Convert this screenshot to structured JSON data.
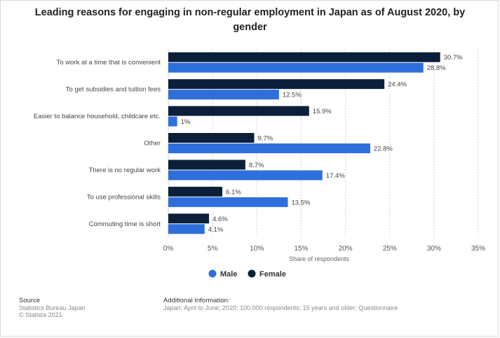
{
  "title": "Leading reasons for engaging in non-regular employment in Japan as of August 2020, by gender",
  "chart_data": {
    "type": "bar",
    "orientation": "horizontal",
    "categories": [
      "To work at a time that is convenient",
      "To get subsidies and tuition fees",
      "Easier to balance household, childcare etc.",
      "Other",
      "There is no regular work",
      "To use professional skills",
      "Commuting time is short"
    ],
    "series": [
      {
        "name": "Female",
        "color": "#0b1f3a",
        "values": [
          30.7,
          24.4,
          15.9,
          9.7,
          8.7,
          6.1,
          4.6
        ],
        "labels": [
          "30.7%",
          "24.4%",
          "15.9%",
          "9.7%",
          "8.7%",
          "6.1%",
          "4.6%"
        ]
      },
      {
        "name": "Male",
        "color": "#2e6fdb",
        "values": [
          28.8,
          12.5,
          1,
          22.8,
          17.4,
          13.5,
          4.1
        ],
        "labels": [
          "28.8%",
          "12.5%",
          "1%",
          "22.8%",
          "17.4%",
          "13.5%",
          "4.1%"
        ]
      }
    ],
    "xlabel": "Share of respondents",
    "xlim": [
      0,
      35
    ],
    "xticks": [
      0,
      5,
      10,
      15,
      20,
      25,
      30,
      35
    ],
    "xtick_labels": [
      "0%",
      "5%",
      "10%",
      "15%",
      "20%",
      "25%",
      "30%",
      "35%"
    ],
    "grid": true,
    "legend": {
      "placement": "bottom",
      "entries": [
        "Male",
        "Female"
      ]
    }
  },
  "footer": {
    "source_heading": "Source",
    "source_lines": [
      "Statistics Bureau Japan",
      "© Statista 2021"
    ],
    "info_heading": "Additional Information:",
    "info_text": "Japan; April to June, 2020; 100,000 respondents; 15 years and older; Questionnaire"
  }
}
